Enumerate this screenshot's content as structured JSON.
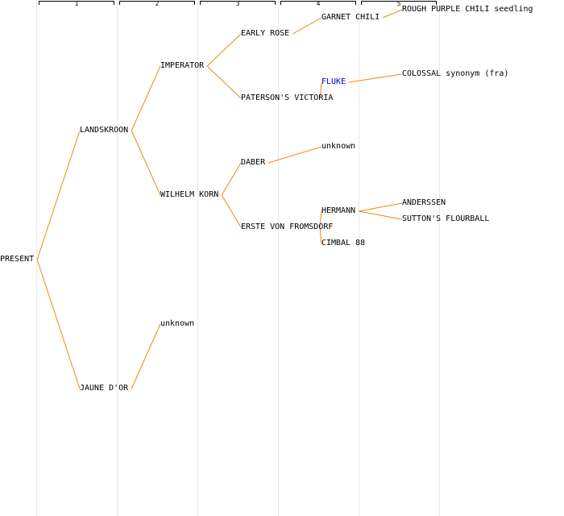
{
  "generations": [
    "1",
    "2",
    "3",
    "4",
    "5"
  ],
  "colors": {
    "link": "#f0890b",
    "text": "#000000",
    "highlight": "#0000cc",
    "gridline": "#e8e8e8"
  },
  "nodes": [
    {
      "id": "present",
      "label": "PRESENT",
      "gen": 0,
      "parent": null
    },
    {
      "id": "landskroon",
      "label": "LANDSKROON",
      "gen": 1,
      "parent": "present"
    },
    {
      "id": "jaune-dor",
      "label": "JAUNE D'OR",
      "gen": 1,
      "parent": "present"
    },
    {
      "id": "imperator",
      "label": "IMPERATOR",
      "gen": 2,
      "parent": "landskroon"
    },
    {
      "id": "wilhelm-korn",
      "label": "WILHELM KORN",
      "gen": 2,
      "parent": "landskroon"
    },
    {
      "id": "unknown-jaune",
      "label": "unknown",
      "gen": 2,
      "parent": "jaune-dor"
    },
    {
      "id": "early-rose",
      "label": "EARLY ROSE",
      "gen": 3,
      "parent": "imperator"
    },
    {
      "id": "patersons-victoria",
      "label": "PATERSON'S VICTORIA",
      "gen": 3,
      "parent": "imperator"
    },
    {
      "id": "daber",
      "label": "DABER",
      "gen": 3,
      "parent": "wilhelm-korn"
    },
    {
      "id": "erste-von-fromsdorf",
      "label": "ERSTE VON FROMSDORF",
      "gen": 3,
      "parent": "wilhelm-korn"
    },
    {
      "id": "garnet-chili",
      "label": "GARNET CHILI",
      "gen": 4,
      "parent": "early-rose"
    },
    {
      "id": "fluke",
      "label": "FLUKE",
      "gen": 4,
      "parent": "patersons-victoria",
      "highlight": true
    },
    {
      "id": "unknown-daber",
      "label": "unknown",
      "gen": 4,
      "parent": "daber"
    },
    {
      "id": "hermann",
      "label": "HERMANN",
      "gen": 4,
      "parent": "erste-von-fromsdorf"
    },
    {
      "id": "cimbal-88",
      "label": "CIMBAL 88",
      "gen": 4,
      "parent": "erste-von-fromsdorf"
    },
    {
      "id": "rough-purple-chili",
      "label": "ROUGH PURPLE CHILI seedling",
      "gen": 5,
      "parent": "garnet-chili"
    },
    {
      "id": "colossal",
      "label": "COLOSSAL synonym (fra)",
      "gen": 5,
      "parent": "fluke"
    },
    {
      "id": "anderssen",
      "label": "ANDERSSEN",
      "gen": 5,
      "parent": "hermann"
    },
    {
      "id": "suttons-flourball",
      "label": "SUTTON'S FLOURBALL",
      "gen": 5,
      "parent": "hermann"
    }
  ]
}
